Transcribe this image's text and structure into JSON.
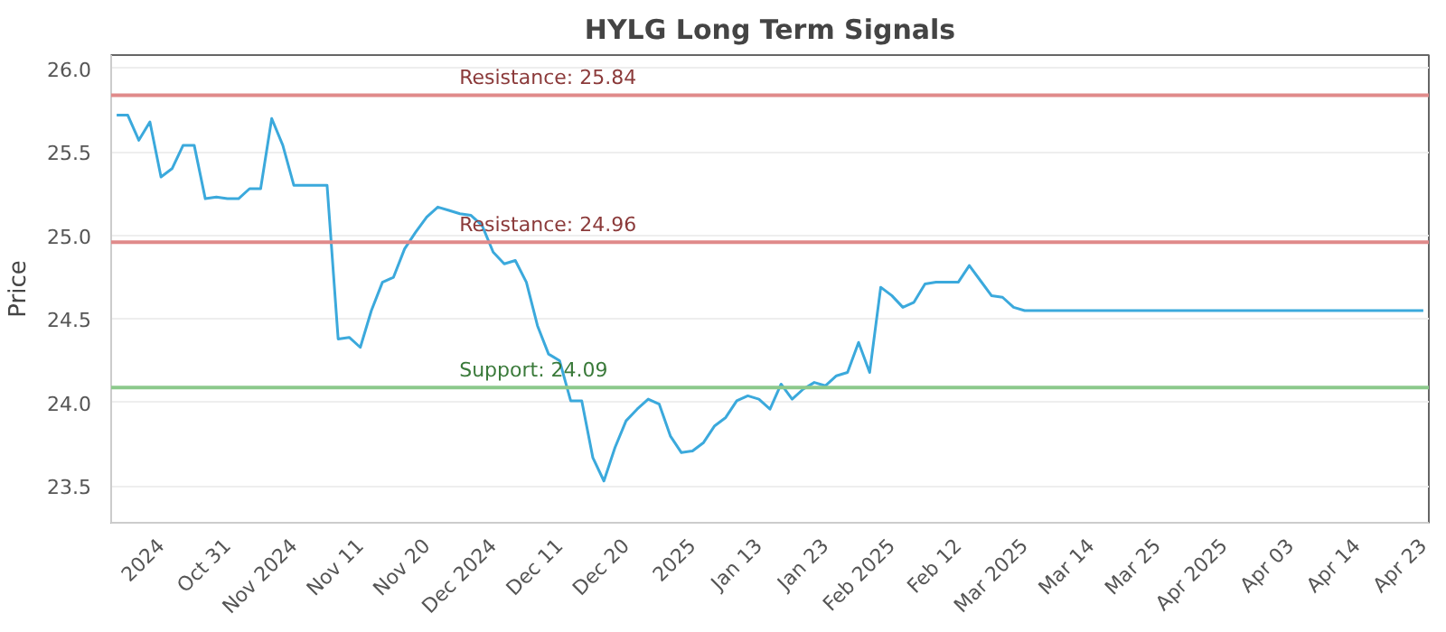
{
  "chart_data": {
    "type": "line",
    "title": "HYLG Long Term Signals",
    "ylabel": "Price",
    "categories": [
      null,
      null,
      null,
      null,
      "2024",
      null,
      null,
      null,
      null,
      null,
      "Oct 31",
      null,
      null,
      null,
      null,
      null,
      "Nov 2024",
      null,
      null,
      null,
      null,
      null,
      "Nov 11",
      null,
      null,
      null,
      null,
      null,
      "Nov 20",
      null,
      null,
      null,
      null,
      null,
      "Dec 2024",
      null,
      null,
      null,
      null,
      null,
      "Dec 11",
      null,
      null,
      null,
      null,
      null,
      "Dec 20",
      null,
      null,
      null,
      null,
      null,
      "2025",
      null,
      null,
      null,
      null,
      null,
      "Jan 13",
      null,
      null,
      null,
      null,
      null,
      "Jan 23",
      null,
      null,
      null,
      null,
      null,
      "Feb 2025",
      null,
      null,
      null,
      null,
      null,
      "Feb 12",
      null,
      null,
      null,
      null,
      null,
      "Mar 2025",
      null,
      null,
      null,
      null,
      null,
      "Mar 14",
      null,
      null,
      null,
      null,
      null,
      "Mar 25",
      null,
      null,
      null,
      null,
      null,
      "Apr 2025",
      null,
      null,
      null,
      null,
      null,
      "Apr 03",
      null,
      null,
      null,
      null,
      null,
      "Apr 14",
      null,
      null,
      null,
      null,
      null,
      "Apr 23"
    ],
    "series": [
      {
        "color": "#3ba9dc",
        "values": [
          25.72,
          25.72,
          25.57,
          25.68,
          25.35,
          25.4,
          25.54,
          25.54,
          25.22,
          25.23,
          25.22,
          25.22,
          25.28,
          25.28,
          25.7,
          25.54,
          25.3,
          25.3,
          25.3,
          25.3,
          24.38,
          24.39,
          24.33,
          24.55,
          24.72,
          24.75,
          24.92,
          25.02,
          25.11,
          25.17,
          25.15,
          25.13,
          25.12,
          25.06,
          24.9,
          24.83,
          24.85,
          24.72,
          24.46,
          24.29,
          24.25,
          24.01,
          24.01,
          23.67,
          23.53,
          23.73,
          23.89,
          23.96,
          24.02,
          23.99,
          23.8,
          23.7,
          23.71,
          23.76,
          23.86,
          23.91,
          24.01,
          24.04,
          24.02,
          23.96,
          24.11,
          24.02,
          24.08,
          24.12,
          24.1,
          24.16,
          24.18,
          24.36,
          24.18,
          24.69,
          24.64,
          24.57,
          24.6,
          24.71,
          24.72,
          24.72,
          24.72,
          24.82,
          24.73,
          24.64,
          24.63,
          24.57,
          24.55,
          24.55,
          24.55,
          24.55,
          24.55,
          24.55,
          24.55,
          24.55,
          24.55,
          24.55,
          24.55,
          24.55,
          24.55,
          24.55,
          24.55,
          24.55,
          24.55,
          24.55,
          24.55,
          24.55,
          24.55,
          24.55,
          24.55,
          24.55,
          24.55,
          24.55,
          24.55,
          24.55,
          24.55,
          24.55,
          24.55,
          24.55,
          24.55,
          24.55,
          24.55,
          24.55,
          24.55
        ]
      }
    ],
    "ylim": [
      23.28,
      26.08
    ],
    "yticks": [
      {
        "value": 23.5,
        "label": "23.5"
      },
      {
        "value": 24,
        "label": "24.0"
      },
      {
        "value": 24.5,
        "label": "24.5"
      },
      {
        "value": 25,
        "label": "25.0"
      },
      {
        "value": 25.5,
        "label": "25.5"
      },
      {
        "value": 26,
        "label": "26.0"
      }
    ],
    "ref_lines": [
      {
        "axis": "y",
        "value": 25.84,
        "label": "Resistance: 25.84",
        "color": "#e08a8a"
      },
      {
        "axis": "y",
        "value": 24.96,
        "label": "Resistance: 24.96",
        "color": "#e08a8a"
      },
      {
        "axis": "y",
        "value": 24.09,
        "label": "Support: 24.09",
        "color": "#8cc98c"
      }
    ],
    "grid": "y",
    "line_style": "solid"
  }
}
